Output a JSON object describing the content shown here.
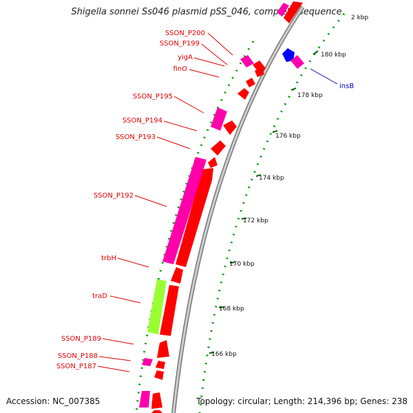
{
  "title": "Shigella sonnei Ss046 plasmid pSS_046, complete sequence",
  "footer": {
    "accession": "Accession: NC_007385",
    "summary": "Topology: circular; Length: 214,396 bp; Genes: 238"
  },
  "colors": {
    "forward_cds": "#ff0000",
    "reverse_cds": "#ff00aa",
    "highlight_cds": "#99ff33",
    "mobile_element": "#0000ff",
    "backbone": "#999999",
    "dots": "#009900",
    "gc_ticks": "#006600"
  },
  "scale_ticks": [
    "2 kbp",
    "180 kbp",
    "178 kbp",
    "176 kbp",
    "174 kbp",
    "172 kbp",
    "170 kbp",
    "168 kbp",
    "166 kbp"
  ],
  "gene_labels_red": [
    "SSON_P200",
    "SSON_P199",
    "yigA",
    "finO",
    "SSON_P195",
    "SSON_P194",
    "SSON_P193",
    "SSON_P192",
    "trbH",
    "traD",
    "SSON_P189",
    "SSON_P188",
    "SSON_P187"
  ],
  "gene_labels_blue": [
    "insB"
  ]
}
